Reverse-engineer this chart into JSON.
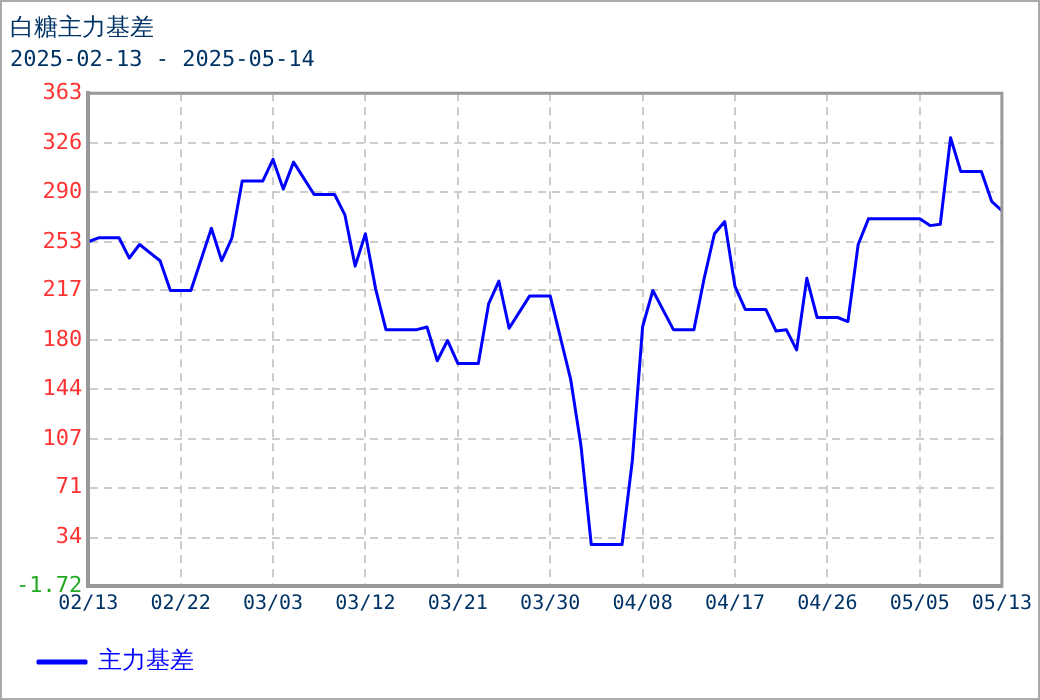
{
  "chart_data": {
    "type": "line",
    "title": "白糖主力基差",
    "subtitle": "2025-02-13 - 2025-05-14",
    "x": [
      "2025-02-13",
      "2025-02-14",
      "2025-02-16",
      "2025-02-17",
      "2025-02-18",
      "2025-02-20",
      "2025-02-21",
      "2025-02-23",
      "2025-02-25",
      "2025-02-26",
      "2025-02-27",
      "2025-02-28",
      "2025-03-02",
      "2025-03-03",
      "2025-03-04",
      "2025-03-05",
      "2025-03-07",
      "2025-03-09",
      "2025-03-10",
      "2025-03-11",
      "2025-03-12",
      "2025-03-13",
      "2025-03-14",
      "2025-03-17",
      "2025-03-18",
      "2025-03-19",
      "2025-03-20",
      "2025-03-21",
      "2025-03-23",
      "2025-03-24",
      "2025-03-25",
      "2025-03-26",
      "2025-03-28",
      "2025-03-30",
      "2025-03-31",
      "2025-04-01",
      "2025-04-02",
      "2025-04-03",
      "2025-04-06",
      "2025-04-07",
      "2025-04-08",
      "2025-04-09",
      "2025-04-11",
      "2025-04-13",
      "2025-04-14",
      "2025-04-15",
      "2025-04-16",
      "2025-04-17",
      "2025-04-18",
      "2025-04-20",
      "2025-04-21",
      "2025-04-22",
      "2025-04-23",
      "2025-04-24",
      "2025-04-25",
      "2025-04-27",
      "2025-04-28",
      "2025-04-29",
      "2025-04-30",
      "2025-05-05",
      "2025-05-06",
      "2025-05-07",
      "2025-05-08",
      "2025-05-09",
      "2025-05-11",
      "2025-05-12",
      "2025-05-13"
    ],
    "series": [
      {
        "name": "主力基差",
        "color": "#0000ff",
        "values": [
          253,
          256,
          256,
          241,
          251,
          239,
          217,
          217,
          263,
          239,
          256,
          298,
          298,
          314,
          292,
          312,
          288,
          288,
          273,
          235,
          259,
          218,
          188,
          188,
          190,
          165,
          180,
          163,
          163,
          207,
          224,
          189,
          213,
          213,
          182,
          151,
          102,
          29,
          29,
          91,
          190,
          217,
          188,
          188,
          226,
          259,
          268,
          220,
          203,
          203,
          187,
          188,
          173,
          226,
          197,
          197,
          194,
          251,
          270,
          270,
          265,
          266,
          330,
          305,
          305,
          283,
          276
        ]
      }
    ],
    "xlim": [
      "2025-02-13",
      "2025-05-13"
    ],
    "xticks": [
      {
        "value": "2025-02-13",
        "label": "02/13"
      },
      {
        "value": "2025-02-22",
        "label": "02/22"
      },
      {
        "value": "2025-03-03",
        "label": "03/03"
      },
      {
        "value": "2025-03-12",
        "label": "03/12"
      },
      {
        "value": "2025-03-21",
        "label": "03/21"
      },
      {
        "value": "2025-03-30",
        "label": "03/30"
      },
      {
        "value": "2025-04-08",
        "label": "04/08"
      },
      {
        "value": "2025-04-17",
        "label": "04/17"
      },
      {
        "value": "2025-04-26",
        "label": "04/26"
      },
      {
        "value": "2025-05-05",
        "label": "05/05"
      },
      {
        "value": "2025-05-13",
        "label": "05/13"
      }
    ],
    "ylim": [
      -1.72,
      363
    ],
    "yticks": [
      -1.72,
      34,
      71,
      107,
      144,
      180,
      217,
      253,
      290,
      326,
      363
    ],
    "grid": true,
    "legend": "bottom left",
    "marker": "none",
    "line_style": "solid"
  }
}
